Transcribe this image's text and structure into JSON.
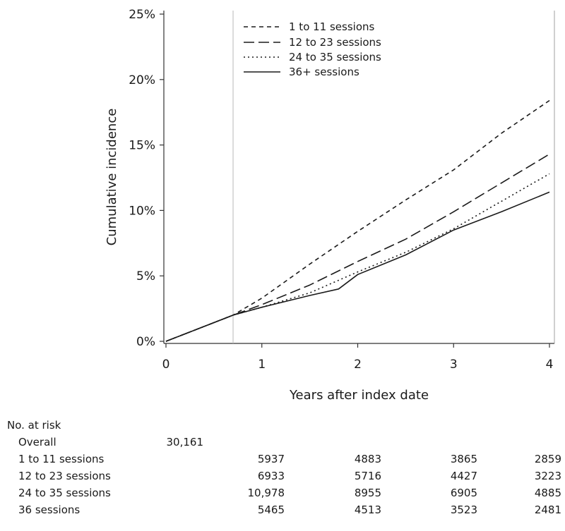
{
  "chart_data": {
    "type": "line",
    "title": "",
    "xlabel": "Years after index date",
    "ylabel": "Cumulative incidence",
    "xlim": [
      0,
      4
    ],
    "ylim": [
      0,
      25
    ],
    "xticks": [
      0,
      1,
      2,
      3,
      4
    ],
    "xtick_labels": [
      "0",
      "1",
      "2",
      "3",
      "4"
    ],
    "yticks": [
      0,
      5,
      10,
      15,
      20,
      25
    ],
    "ytick_labels": [
      "0%",
      "5%",
      "10%",
      "15%",
      "20%",
      "25%"
    ],
    "reference_line_x": 0.7,
    "legend_position": "top-right",
    "series": [
      {
        "name": "1 to 11 sessions",
        "style": "dashed-short",
        "x": [
          0,
          0.7,
          1.0,
          1.5,
          2.0,
          2.5,
          3.0,
          3.5,
          4.0
        ],
        "y": [
          0,
          2.0,
          3.3,
          5.9,
          8.4,
          10.8,
          13.1,
          15.9,
          18.4
        ]
      },
      {
        "name": "12 to 23 sessions",
        "style": "dashed-long",
        "x": [
          0,
          0.7,
          1.0,
          1.5,
          2.0,
          2.5,
          3.0,
          3.5,
          4.0
        ],
        "y": [
          0,
          2.0,
          2.8,
          4.3,
          6.1,
          7.8,
          9.9,
          12.1,
          14.3
        ]
      },
      {
        "name": "24 to 35 sessions",
        "style": "dotted",
        "x": [
          0,
          0.7,
          1.0,
          1.5,
          2.0,
          2.5,
          3.0,
          3.5,
          4.0
        ],
        "y": [
          0,
          2.0,
          2.6,
          3.7,
          5.3,
          6.8,
          8.6,
          10.7,
          12.8
        ]
      },
      {
        "name": "36+ sessions",
        "style": "solid",
        "x": [
          0,
          0.7,
          1.0,
          1.5,
          1.8,
          2.0,
          2.5,
          3.0,
          3.5,
          4.0
        ],
        "y": [
          0,
          2.0,
          2.6,
          3.5,
          4.0,
          5.1,
          6.6,
          8.5,
          9.9,
          11.4
        ]
      }
    ]
  },
  "risk_table": {
    "title": "No. at risk",
    "rows": [
      {
        "label": "Overall",
        "values": [
          "30,161"
        ]
      },
      {
        "label": "1 to 11 sessions",
        "values": [
          "5937",
          "4883",
          "3865",
          "2859"
        ]
      },
      {
        "label": "12 to 23 sessions",
        "values": [
          "6933",
          "5716",
          "4427",
          "3223"
        ]
      },
      {
        "label": "24 to 35 sessions",
        "values": [
          "10,978",
          "8955",
          "6905",
          "4885"
        ]
      },
      {
        "label": "36 sessions",
        "values": [
          "5465",
          "4513",
          "3523",
          "2481"
        ]
      }
    ]
  }
}
